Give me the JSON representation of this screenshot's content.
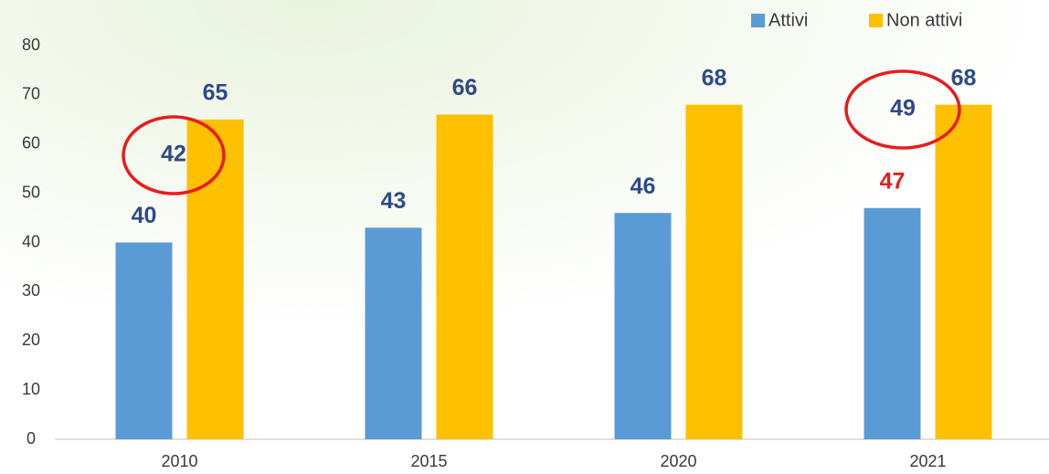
{
  "chart_data": {
    "type": "bar",
    "categories": [
      "2010",
      "2015",
      "2020",
      "2021"
    ],
    "series": [
      {
        "name": "Attivi",
        "color": "#5b9bd5",
        "values": [
          40,
          43,
          46,
          47
        ],
        "label_colors": [
          "#2e4a8c",
          "#2e4a8c",
          "#2e4a8c",
          "#e81c1c"
        ]
      },
      {
        "name": "Non attivi",
        "color": "#ffc000",
        "values": [
          65,
          66,
          68,
          68
        ],
        "label_colors": [
          "#2e4a8c",
          "#2e4a8c",
          "#2e4a8c",
          "#2e4a8c"
        ]
      }
    ],
    "annotations": [
      {
        "text": "42",
        "color": "#e81c1c"
      },
      {
        "text": "49",
        "color": "#e81c1c"
      }
    ],
    "ylim": [
      0,
      80
    ],
    "yticks": [
      0,
      10,
      20,
      30,
      40,
      50,
      60,
      70,
      80
    ],
    "grid": false,
    "legend": "top-right"
  }
}
